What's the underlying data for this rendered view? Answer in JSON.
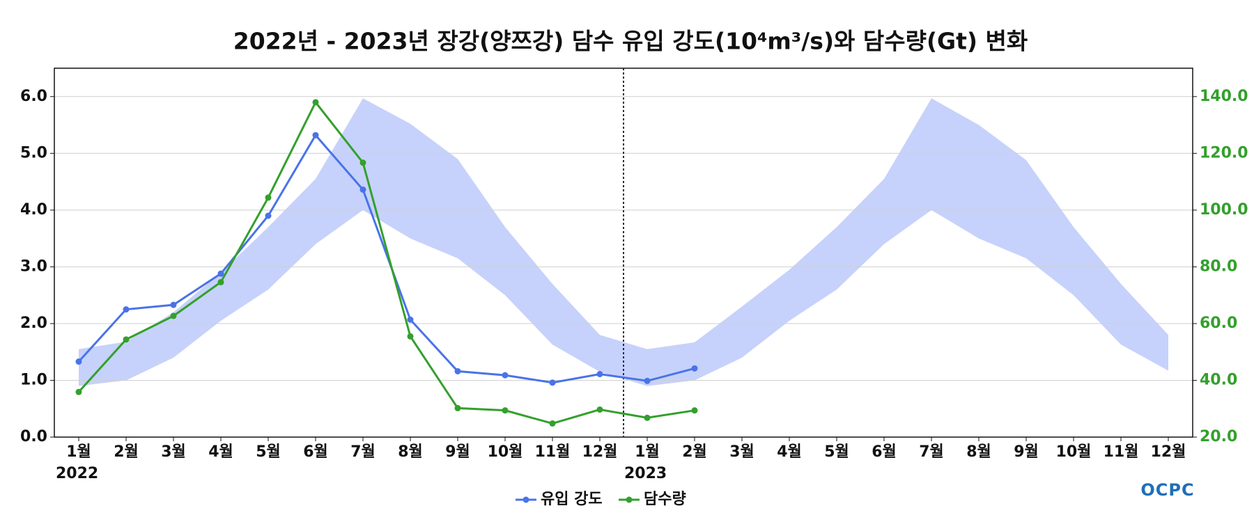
{
  "chart_data": {
    "type": "line",
    "title": "2022년 - 2023년 장강(양쯔강) 담수 유입 강도(10⁴m³/s)와 담수량(Gt) 변화",
    "categories": [
      "1월",
      "2월",
      "3월",
      "4월",
      "5월",
      "6월",
      "7월",
      "8월",
      "9월",
      "10월",
      "11월",
      "12월",
      "1월",
      "2월",
      "3월",
      "4월",
      "5월",
      "6월",
      "7월",
      "8월",
      "9월",
      "10월",
      "11월",
      "12월"
    ],
    "year_labels": [
      "2022",
      null,
      null,
      null,
      null,
      null,
      null,
      null,
      null,
      null,
      null,
      null,
      "2023",
      null,
      null,
      null,
      null,
      null,
      null,
      null,
      null,
      null,
      null,
      null
    ],
    "series": [
      {
        "name": "유입 강도",
        "color": "#4a73e8",
        "axis": "y",
        "values": [
          1.33,
          2.25,
          2.33,
          2.88,
          3.9,
          5.32,
          4.36,
          2.07,
          1.16,
          1.09,
          0.96,
          1.11,
          0.99,
          1.21,
          null,
          null,
          null,
          null,
          null,
          null,
          null,
          null,
          null,
          null
        ]
      },
      {
        "name": "담수량",
        "color": "#33a02c",
        "axis": "y2",
        "values": [
          35.9,
          54.4,
          62.7,
          74.6,
          104.4,
          138.0,
          116.7,
          55.5,
          30.2,
          29.4,
          24.8,
          29.7,
          26.8,
          29.4,
          null,
          null,
          null,
          null,
          null,
          null,
          null,
          null,
          null,
          null
        ]
      }
    ],
    "band": {
      "color": "#c6d2fb",
      "upper": [
        1.55,
        1.68,
        2.2,
        2.9,
        3.7,
        4.55,
        5.97,
        5.52,
        4.9,
        3.7,
        2.7,
        1.8,
        1.55,
        1.67,
        2.3,
        2.95,
        3.7,
        4.55,
        5.97,
        5.5,
        4.88,
        3.7,
        2.7,
        1.8
      ],
      "lower": [
        0.9,
        1.0,
        1.4,
        2.05,
        2.6,
        3.4,
        4.0,
        3.5,
        3.15,
        2.5,
        1.63,
        1.15,
        0.9,
        1.0,
        1.4,
        2.05,
        2.6,
        3.4,
        4.0,
        3.5,
        3.15,
        2.5,
        1.63,
        1.17
      ]
    },
    "ylim": [
      0,
      6.5
    ],
    "yticks": [
      {
        "value": 0,
        "label": "0.0"
      },
      {
        "value": 1,
        "label": "1.0"
      },
      {
        "value": 2,
        "label": "2.0"
      },
      {
        "value": 3,
        "label": "3.0"
      },
      {
        "value": 4,
        "label": "4.0"
      },
      {
        "value": 5,
        "label": "5.0"
      },
      {
        "value": 6,
        "label": "6.0"
      }
    ],
    "y2lim": [
      20,
      150
    ],
    "y2ticks": [
      {
        "value": 20,
        "label": "20.0"
      },
      {
        "value": 40,
        "label": "40.0"
      },
      {
        "value": 60,
        "label": "60.0"
      },
      {
        "value": 80,
        "label": "80.0"
      },
      {
        "value": 100,
        "label": "100.0"
      },
      {
        "value": 120,
        "label": "120.0"
      },
      {
        "value": 140,
        "label": "140.0"
      }
    ],
    "y2_color": "#33a02c",
    "grid": true,
    "logo": "OCPC"
  }
}
